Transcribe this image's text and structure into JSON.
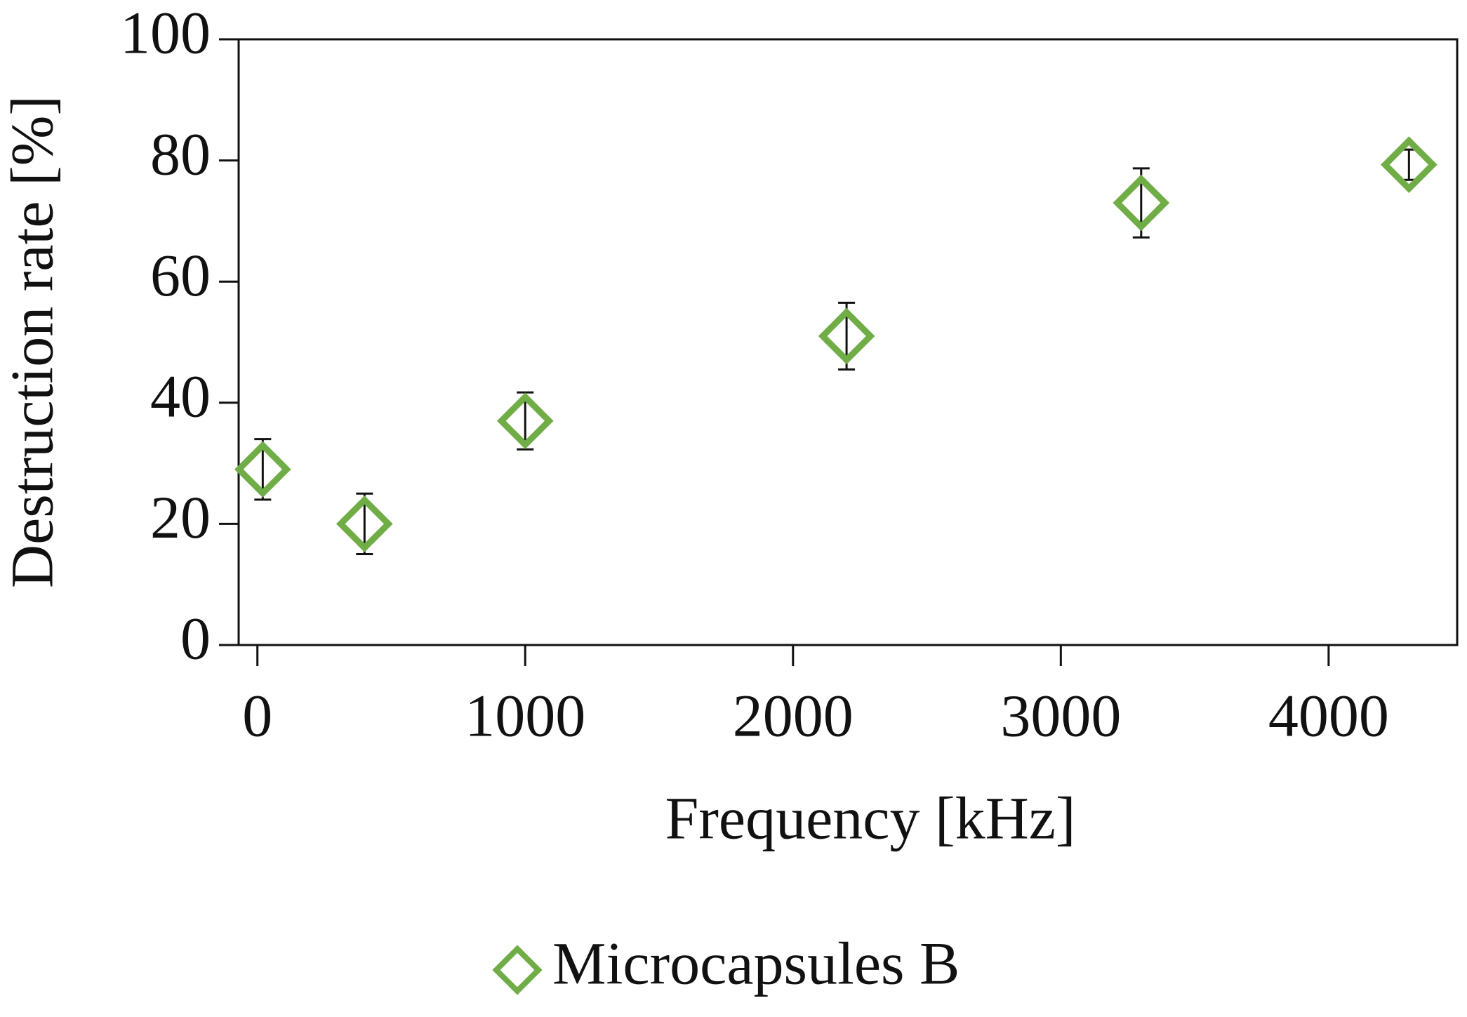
{
  "chart_data": {
    "type": "scatter",
    "x_label": "Frequency [kHz]",
    "y_label": "Destruction rate [%]",
    "series": [
      {
        "name": "Microcapsules B",
        "color": "#70ad47",
        "x": [
          20,
          400,
          1000,
          2200,
          3300,
          4300
        ],
        "values": [
          29,
          20,
          37,
          51,
          73,
          79.3
        ],
        "errors": [
          5,
          5,
          4.7,
          5.5,
          5.7,
          2.5
        ]
      }
    ],
    "xlim": [
      -70,
      4480
    ],
    "xticks": [
      0,
      1000,
      2000,
      3000,
      4000
    ],
    "ylim": [
      0,
      100
    ],
    "yticks": [
      0,
      20,
      40,
      60,
      80,
      100
    ],
    "legend": "bottom"
  }
}
